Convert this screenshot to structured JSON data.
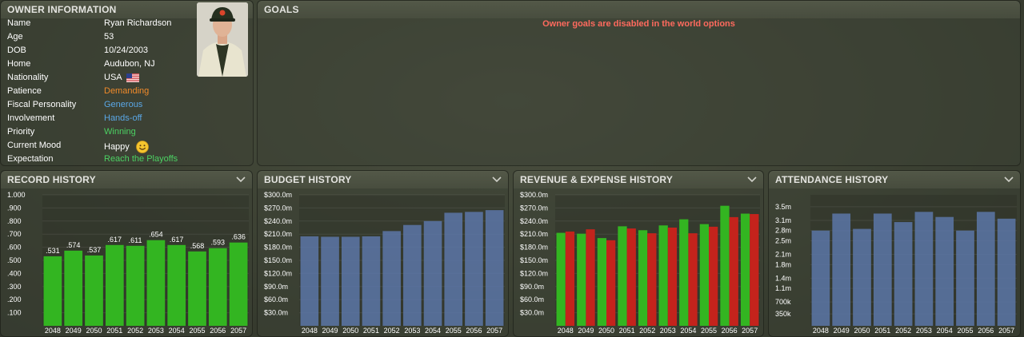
{
  "owner": {
    "title": "OWNER INFORMATION",
    "fields": [
      {
        "label": "Name",
        "value": "Ryan Richardson",
        "style": ""
      },
      {
        "label": "Age",
        "value": "53",
        "style": ""
      },
      {
        "label": "DOB",
        "value": "10/24/2003",
        "style": ""
      },
      {
        "label": "Home",
        "value": "Audubon, NJ",
        "style": ""
      },
      {
        "label": "Nationality",
        "value": "USA",
        "style": "",
        "icon": "us-flag-icon"
      },
      {
        "label": "Patience",
        "value": "Demanding",
        "style": "orange"
      },
      {
        "label": "Fiscal Personality",
        "value": "Generous",
        "style": "blue"
      },
      {
        "label": "Involvement",
        "value": "Hands-off",
        "style": "blue"
      },
      {
        "label": "Priority",
        "value": "Winning",
        "style": "green"
      },
      {
        "label": "Current Mood",
        "value": "Happy",
        "style": "",
        "icon": "happy-face-icon"
      },
      {
        "label": "Expectation",
        "value": "Reach the Playoffs",
        "style": "green"
      }
    ]
  },
  "goals": {
    "title": "GOALS",
    "message": "Owner goals are disabled in the world options"
  },
  "colors": {
    "green_bar": "#33b521",
    "blue_bar": "#5c77a8",
    "red_bar": "#c4231c",
    "orange_text": "#f08a2a",
    "blue_text": "#5aa7e6",
    "green_text": "#4cd163",
    "goal_text": "#ff6a5e"
  },
  "chart_data": [
    {
      "id": "record",
      "type": "bar",
      "title": "RECORD HISTORY",
      "categories": [
        "2048",
        "2049",
        "2050",
        "2051",
        "2052",
        "2053",
        "2054",
        "2055",
        "2056",
        "2057"
      ],
      "values": [
        0.531,
        0.574,
        0.537,
        0.617,
        0.611,
        0.654,
        0.617,
        0.568,
        0.593,
        0.636
      ],
      "data_labels": [
        ".531",
        ".574",
        ".537",
        ".617",
        ".611",
        ".654",
        ".617",
        ".568",
        ".593",
        ".636"
      ],
      "yticks": [
        1.0,
        0.9,
        0.8,
        0.7,
        0.6,
        0.5,
        0.4,
        0.3,
        0.2,
        0.1
      ],
      "ytick_labels": [
        "1.000",
        ".900",
        ".800",
        ".700",
        ".600",
        ".500",
        ".400",
        ".300",
        ".200",
        ".100"
      ],
      "ylim": [
        0,
        1.0
      ],
      "color": "green"
    },
    {
      "id": "budget",
      "type": "bar",
      "title": "BUDGET HISTORY",
      "categories": [
        "2048",
        "2049",
        "2050",
        "2051",
        "2052",
        "2053",
        "2054",
        "2055",
        "2056",
        "2057"
      ],
      "values": [
        205,
        204,
        204,
        205,
        217,
        231,
        240,
        259,
        261,
        265
      ],
      "yticks": [
        300,
        270,
        240,
        210,
        180,
        150,
        120,
        90,
        60,
        30
      ],
      "ytick_labels": [
        "$300.0m",
        "$270.0m",
        "$240.0m",
        "$210.0m",
        "$180.0m",
        "$150.0m",
        "$120.0m",
        "$90.0m",
        "$60.0m",
        "$30.0m"
      ],
      "ylim": [
        0,
        300
      ],
      "color": "blue"
    },
    {
      "id": "revexp",
      "type": "bar",
      "title": "REVENUE & EXPENSE HISTORY",
      "categories": [
        "2048",
        "2049",
        "2050",
        "2051",
        "2052",
        "2053",
        "2054",
        "2055",
        "2056",
        "2057"
      ],
      "series": [
        {
          "values": [
            213,
            211,
            201,
            228,
            219,
            230,
            244,
            233,
            275,
            257
          ],
          "color": "green"
        },
        {
          "values": [
            216,
            221,
            196,
            223,
            212,
            225,
            212,
            227,
            249,
            256
          ],
          "color": "red"
        }
      ],
      "yticks": [
        300,
        270,
        240,
        210,
        180,
        150,
        120,
        90,
        60,
        30
      ],
      "ytick_labels": [
        "$300.0m",
        "$270.0m",
        "$240.0m",
        "$210.0m",
        "$180.0m",
        "$150.0m",
        "$120.0m",
        "$90.0m",
        "$60.0m",
        "$30.0m"
      ],
      "ylim": [
        0,
        300
      ]
    },
    {
      "id": "attend",
      "type": "bar",
      "title": "ATTENDANCE HISTORY",
      "categories": [
        "2048",
        "2049",
        "2050",
        "2051",
        "2052",
        "2053",
        "2054",
        "2055",
        "2056",
        "2057"
      ],
      "values": [
        2.8,
        3.3,
        2.85,
        3.3,
        3.05,
        3.35,
        3.2,
        2.8,
        3.35,
        3.15
      ],
      "yticks": [
        3.5,
        3.1,
        2.8,
        2.5,
        2.1,
        1.8,
        1.4,
        1.1,
        0.7,
        0.35
      ],
      "ytick_labels": [
        "3.5m",
        "3.1m",
        "2.8m",
        "2.5m",
        "2.1m",
        "1.8m",
        "1.4m",
        "1.1m",
        "700k",
        "350k"
      ],
      "ylim": [
        0,
        3.85
      ],
      "color": "blue"
    }
  ]
}
